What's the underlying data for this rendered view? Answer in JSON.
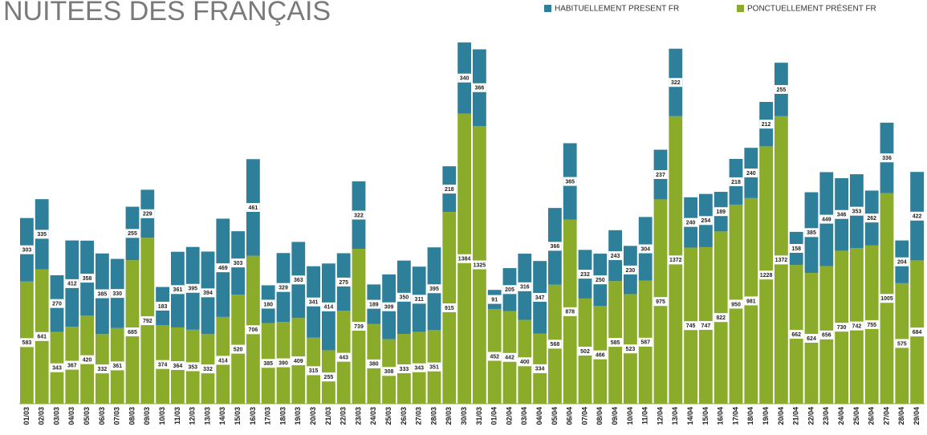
{
  "chart_data": {
    "type": "stacked_bar",
    "title": "NUITÉES DES FRANÇAIS",
    "categories": [
      "01/03",
      "02/03",
      "03/03",
      "04/03",
      "05/03",
      "06/03",
      "07/03",
      "08/03",
      "09/03",
      "10/03",
      "11/03",
      "12/03",
      "13/03",
      "14/03",
      "15/03",
      "16/03",
      "17/03",
      "18/03",
      "19/03",
      "20/03",
      "21/03",
      "22/03",
      "23/03",
      "24/03",
      "25/03",
      "26/03",
      "27/03",
      "28/03",
      "29/03",
      "30/03",
      "31/03",
      "01/04",
      "02/04",
      "03/04",
      "04/04",
      "05/04",
      "06/04",
      "07/04",
      "08/04",
      "09/04",
      "10/04",
      "11/04",
      "12/04",
      "13/04",
      "14/04",
      "15/04",
      "16/04",
      "17/04",
      "18/04",
      "19/04",
      "20/04",
      "21/04",
      "22/04",
      "23/04",
      "24/04",
      "25/04",
      "26/04",
      "27/04",
      "28/04",
      "29/04"
    ],
    "series": [
      {
        "name": "PONCTUELLEMENT PRÉSENT FR",
        "color": "#8aac2a",
        "values": [
          583,
          641,
          343,
          367,
          420,
          332,
          361,
          685,
          792,
          374,
          364,
          353,
          332,
          414,
          520,
          706,
          385,
          390,
          409,
          315,
          255,
          443,
          739,
          380,
          308,
          333,
          343,
          351,
          915,
          1384,
          1325,
          452,
          442,
          400,
          334,
          568,
          878,
          502,
          466,
          585,
          523,
          587,
          975,
          1372,
          745,
          747,
          822,
          950,
          981,
          1228,
          1372,
          662,
          624,
          656,
          730,
          742,
          755,
          1005,
          575,
          684
        ]
      },
      {
        "name": "HABITUELLEMENT PRESENT FR",
        "color": "#2e7f9a",
        "values": [
          303,
          335,
          270,
          412,
          358,
          385,
          330,
          255,
          229,
          183,
          361,
          395,
          394,
          469,
          303,
          461,
          180,
          329,
          363,
          341,
          414,
          275,
          322,
          189,
          309,
          350,
          311,
          395,
          218,
          340,
          366,
          91,
          205,
          316,
          347,
          366,
          365,
          232,
          250,
          243,
          230,
          304,
          237,
          322,
          240,
          254,
          189,
          218,
          240,
          212,
          255,
          158,
          385,
          449,
          346,
          353,
          262,
          336,
          204,
          422
        ]
      }
    ],
    "ylim": [
      0,
      1800
    ]
  }
}
